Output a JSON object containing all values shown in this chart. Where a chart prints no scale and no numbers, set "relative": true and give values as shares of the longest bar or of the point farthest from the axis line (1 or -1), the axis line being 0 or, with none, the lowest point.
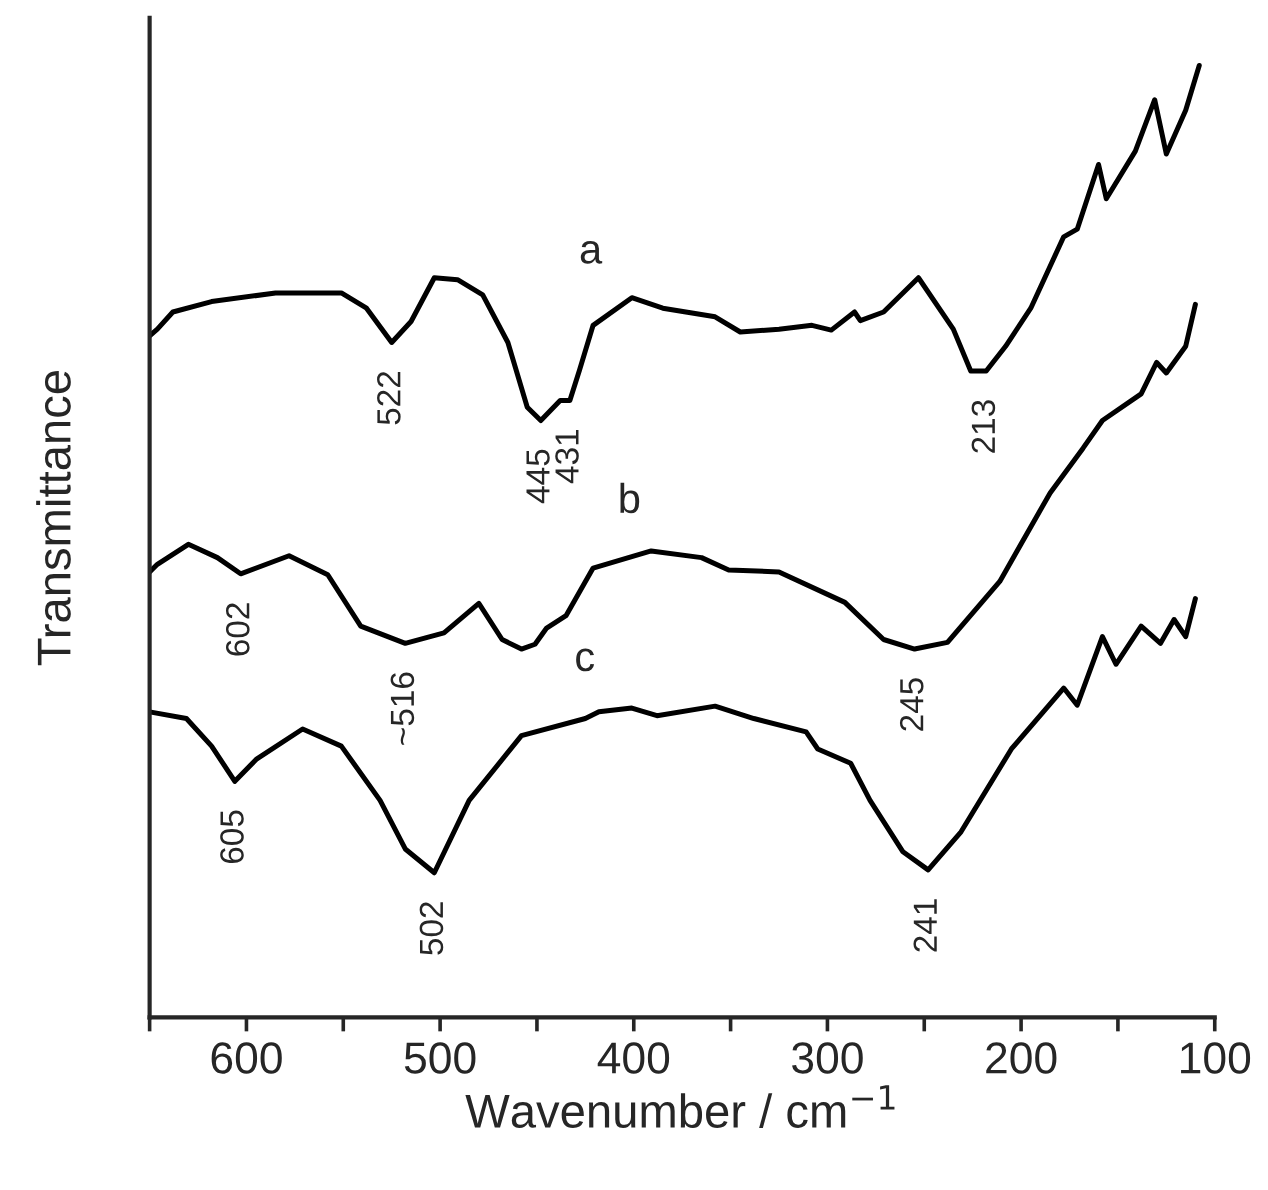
{
  "chart_data": {
    "type": "line",
    "relative": true,
    "xlabel": "Wavenumber / cm$^{−1}$",
    "ylabel": "Transmittance",
    "xlim": [
      650,
      100
    ],
    "xticks": [
      {
        "value": 650,
        "label": null
      },
      600,
      {
        "value": 550,
        "label": null
      },
      500,
      {
        "value": 450,
        "label": null
      },
      400,
      {
        "value": 350,
        "label": null
      },
      300,
      {
        "value": 250,
        "label": null
      },
      200,
      {
        "value": 150,
        "label": null
      },
      100
    ],
    "tick_labels": "x",
    "grid": false,
    "legend": false,
    "marker": "none",
    "line_style": "solid",
    "series": [
      {
        "name": "a",
        "color": "#000000",
        "x": [
          650,
          646,
          638,
          618,
          585,
          551,
          538,
          525,
          515,
          503,
          491,
          478,
          465,
          455,
          448,
          438,
          433,
          428,
          421,
          401,
          385,
          358,
          345,
          325,
          308,
          298,
          286,
          283,
          271,
          253,
          235,
          226,
          218,
          208,
          195,
          178,
          171,
          160,
          156,
          141,
          131,
          125,
          115,
          108
        ],
        "values": [
          0.716,
          0.723,
          0.741,
          0.752,
          0.761,
          0.761,
          0.745,
          0.709,
          0.731,
          0.777,
          0.775,
          0.759,
          0.709,
          0.641,
          0.627,
          0.648,
          0.648,
          0.68,
          0.727,
          0.756,
          0.745,
          0.736,
          0.72,
          0.723,
          0.727,
          0.722,
          0.741,
          0.732,
          0.741,
          0.777,
          0.723,
          0.679,
          0.679,
          0.705,
          0.745,
          0.82,
          0.828,
          0.896,
          0.86,
          0.91,
          0.964,
          0.907,
          0.953,
          1.0
        ]
      },
      {
        "name": "b",
        "color": "#000000",
        "x": [
          650,
          646,
          630,
          615,
          603,
          578,
          558,
          541,
          518,
          498,
          480,
          468,
          458,
          451,
          445,
          435,
          421,
          391,
          365,
          351,
          325,
          291,
          271,
          255,
          238,
          211,
          185,
          168,
          158,
          138,
          130,
          125,
          115,
          110
        ],
        "values": [
          0.468,
          0.476,
          0.497,
          0.483,
          0.466,
          0.485,
          0.465,
          0.411,
          0.393,
          0.404,
          0.435,
          0.397,
          0.387,
          0.392,
          0.409,
          0.422,
          0.472,
          0.49,
          0.483,
          0.47,
          0.468,
          0.436,
          0.397,
          0.387,
          0.394,
          0.458,
          0.551,
          0.598,
          0.627,
          0.655,
          0.688,
          0.677,
          0.705,
          0.749
        ]
      },
      {
        "name": "c",
        "color": "#000000",
        "x": [
          650,
          631,
          618,
          606,
          595,
          571,
          551,
          531,
          518,
          503,
          485,
          458,
          425,
          418,
          401,
          388,
          358,
          338,
          311,
          305,
          288,
          278,
          261,
          248,
          231,
          205,
          178,
          171,
          158,
          151,
          138,
          128,
          121,
          115,
          110
        ],
        "values": [
          0.321,
          0.314,
          0.285,
          0.248,
          0.271,
          0.303,
          0.285,
          0.228,
          0.177,
          0.152,
          0.228,
          0.296,
          0.314,
          0.321,
          0.325,
          0.317,
          0.327,
          0.314,
          0.3,
          0.282,
          0.267,
          0.228,
          0.174,
          0.155,
          0.195,
          0.282,
          0.346,
          0.328,
          0.4,
          0.371,
          0.411,
          0.393,
          0.418,
          0.4,
          0.44
        ]
      }
    ],
    "annotations": [
      {
        "text": "522",
        "x": 525,
        "y": 0.709
      },
      {
        "text": "445",
        "x": 448,
        "y": 0.627
      },
      {
        "text": "431",
        "x": 433,
        "y": 0.648
      },
      {
        "text": "213",
        "x": 218,
        "y": 0.679
      },
      {
        "text": "602",
        "x": 603,
        "y": 0.466
      },
      {
        "text": "~516",
        "x": 518,
        "y": 0.393
      },
      {
        "text": "245",
        "x": 255,
        "y": 0.387
      },
      {
        "text": "605",
        "x": 606,
        "y": 0.248
      },
      {
        "text": "502",
        "x": 503,
        "y": 0.152
      },
      {
        "text": "241",
        "x": 248,
        "y": 0.155
      }
    ]
  }
}
